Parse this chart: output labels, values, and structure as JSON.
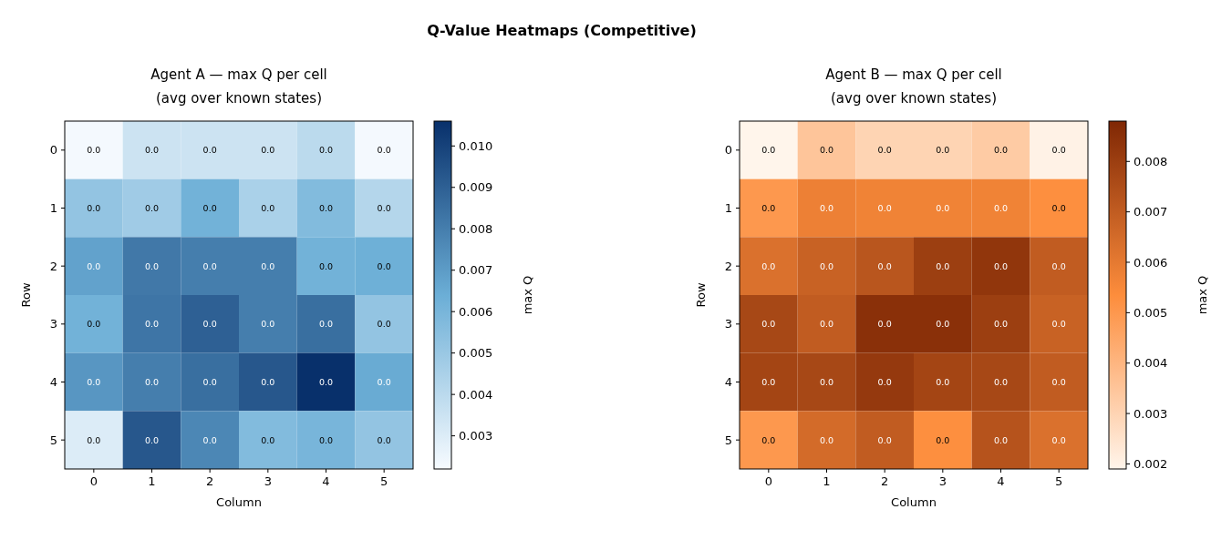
{
  "chart_data": [
    {
      "type": "other",
      "title": "Q-Value Heatmaps (Competitive)"
    },
    {
      "type": "heatmap",
      "title": "Agent A — max Q per cell\n(avg over known states)",
      "xlabel": "Column",
      "ylabel": "Row",
      "clabel": "max Q",
      "categories": [
        "0",
        "1",
        "2",
        "3",
        "4",
        "5"
      ],
      "y_categories": [
        "0",
        "1",
        "2",
        "3",
        "4",
        "5"
      ],
      "cells": [
        [
          0.0023,
          0.0035,
          0.0035,
          0.0035,
          0.004,
          0.0023
        ],
        [
          0.0052,
          0.0048,
          0.0062,
          0.0045,
          0.0057,
          0.0042
        ],
        [
          0.0068,
          0.0082,
          0.008,
          0.008,
          0.0062,
          0.0063
        ],
        [
          0.0062,
          0.0083,
          0.009,
          0.008,
          0.0085,
          0.0052
        ],
        [
          0.0072,
          0.008,
          0.0085,
          0.0093,
          0.0106,
          0.0065
        ],
        [
          0.003,
          0.0093,
          0.0077,
          0.0057,
          0.006,
          0.0052
        ]
      ],
      "cell_labels": [
        [
          "0.0",
          "0.0",
          "0.0",
          "0.0",
          "0.0",
          "0.0"
        ],
        [
          "0.0",
          "0.0",
          "0.0",
          "0.0",
          "0.0",
          "0.0"
        ],
        [
          "0.0",
          "0.0",
          "0.0",
          "0.0",
          "0.0",
          "0.0"
        ],
        [
          "0.0",
          "0.0",
          "0.0",
          "0.0",
          "0.0",
          "0.0"
        ],
        [
          "0.0",
          "0.0",
          "0.0",
          "0.0",
          "0.0",
          "0.0"
        ],
        [
          "0.0",
          "0.0",
          "0.0",
          "0.0",
          "0.0",
          "0.0"
        ]
      ],
      "colors": [
        "#f7fbff",
        "#6baed6",
        "#08306b"
      ],
      "clim": [
        0.0022,
        0.0106
      ],
      "cticks": [
        0.003,
        0.004,
        0.005,
        0.006,
        0.007,
        0.008,
        0.009,
        {
          "value": 0.01,
          "label": "0.010"
        }
      ]
    },
    {
      "type": "heatmap",
      "title": "Agent B — max Q per cell\n(avg over known states)",
      "xlabel": "Column",
      "ylabel": "Row",
      "clabel": "max Q",
      "categories": [
        "0",
        "1",
        "2",
        "3",
        "4",
        "5"
      ],
      "y_categories": [
        "0",
        "1",
        "2",
        "3",
        "4",
        "5"
      ],
      "cells": [
        [
          0.0019,
          0.0035,
          0.003,
          0.003,
          0.0033,
          0.002
        ],
        [
          0.005,
          0.0058,
          0.0057,
          0.0057,
          0.0057,
          0.0053
        ],
        [
          0.0063,
          0.0068,
          0.0072,
          0.008,
          0.0083,
          0.007
        ],
        [
          0.0077,
          0.007,
          0.0085,
          0.0085,
          0.008,
          0.0068
        ],
        [
          0.0078,
          0.0077,
          0.0082,
          0.0078,
          0.0077,
          0.007
        ],
        [
          0.005,
          0.0065,
          0.007,
          0.0053,
          0.0073,
          0.0063
        ]
      ],
      "cell_labels": [
        [
          "0.0",
          "0.0",
          "0.0",
          "0.0",
          "0.0",
          "0.0"
        ],
        [
          "0.0",
          "0.0",
          "0.0",
          "0.0",
          "0.0",
          "0.0"
        ],
        [
          "0.0",
          "0.0",
          "0.0",
          "0.0",
          "0.0",
          "0.0"
        ],
        [
          "0.0",
          "0.0",
          "0.0",
          "0.0",
          "0.0",
          "0.0"
        ],
        [
          "0.0",
          "0.0",
          "0.0",
          "0.0",
          "0.0",
          "0.0"
        ],
        [
          "0.0",
          "0.0",
          "0.0",
          "0.0",
          "0.0",
          "0.0"
        ]
      ],
      "colors": [
        "#fff5eb",
        "#fd8d3c",
        "#7f2704"
      ],
      "clim": [
        0.0019,
        0.0088
      ],
      "cticks": [
        0.002,
        0.003,
        0.004,
        0.005,
        0.006,
        0.007,
        0.008
      ]
    }
  ]
}
